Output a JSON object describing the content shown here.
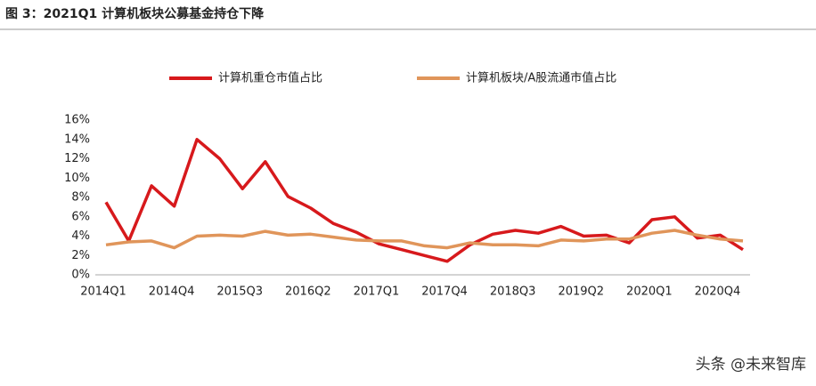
{
  "chart_data": {
    "type": "line",
    "title": "图 3：2021Q1 计算机板块公募基金持仓下降",
    "watermark": "头条 @未来智库",
    "categories": [
      "2014Q1",
      null,
      null,
      "2014Q4",
      null,
      null,
      "2015Q3",
      null,
      null,
      "2016Q2",
      null,
      null,
      "2017Q1",
      null,
      null,
      "2017Q4",
      null,
      null,
      "2018Q3",
      null,
      null,
      "2019Q2",
      null,
      null,
      "2020Q1",
      null,
      null,
      "2020Q4",
      null
    ],
    "series": [
      {
        "name": "计算机重仓市值占比",
        "color": "#d7191c",
        "values": [
          7.5,
          3.5,
          9.2,
          7.1,
          14.0,
          12.0,
          8.9,
          11.7,
          8.1,
          6.9,
          5.3,
          4.4,
          3.2,
          2.6,
          2.0,
          1.4,
          3.1,
          4.2,
          4.6,
          4.3,
          5.0,
          4.0,
          4.1,
          3.3,
          5.7,
          6.0,
          3.8,
          4.1,
          2.6
        ]
      },
      {
        "name": "计算机板块/A股流通市值占比",
        "color": "#e0955a",
        "values": [
          3.1,
          3.4,
          3.5,
          2.8,
          4.0,
          4.1,
          4.0,
          4.5,
          4.1,
          4.2,
          3.9,
          3.6,
          3.5,
          3.5,
          3.0,
          2.8,
          3.3,
          3.1,
          3.1,
          3.0,
          3.6,
          3.5,
          3.7,
          3.7,
          4.3,
          4.6,
          4.1,
          3.7,
          3.5
        ]
      }
    ],
    "ylim": [
      0,
      16
    ],
    "yticks": [
      {
        "value": 0,
        "label": "0%"
      },
      {
        "value": 2,
        "label": "2%"
      },
      {
        "value": 4,
        "label": "4%"
      },
      {
        "value": 6,
        "label": "6%"
      },
      {
        "value": 8,
        "label": "8%"
      },
      {
        "value": 10,
        "label": "10%"
      },
      {
        "value": 12,
        "label": "12%"
      },
      {
        "value": 14,
        "label": "14%"
      },
      {
        "value": 16,
        "label": "16%"
      }
    ]
  }
}
